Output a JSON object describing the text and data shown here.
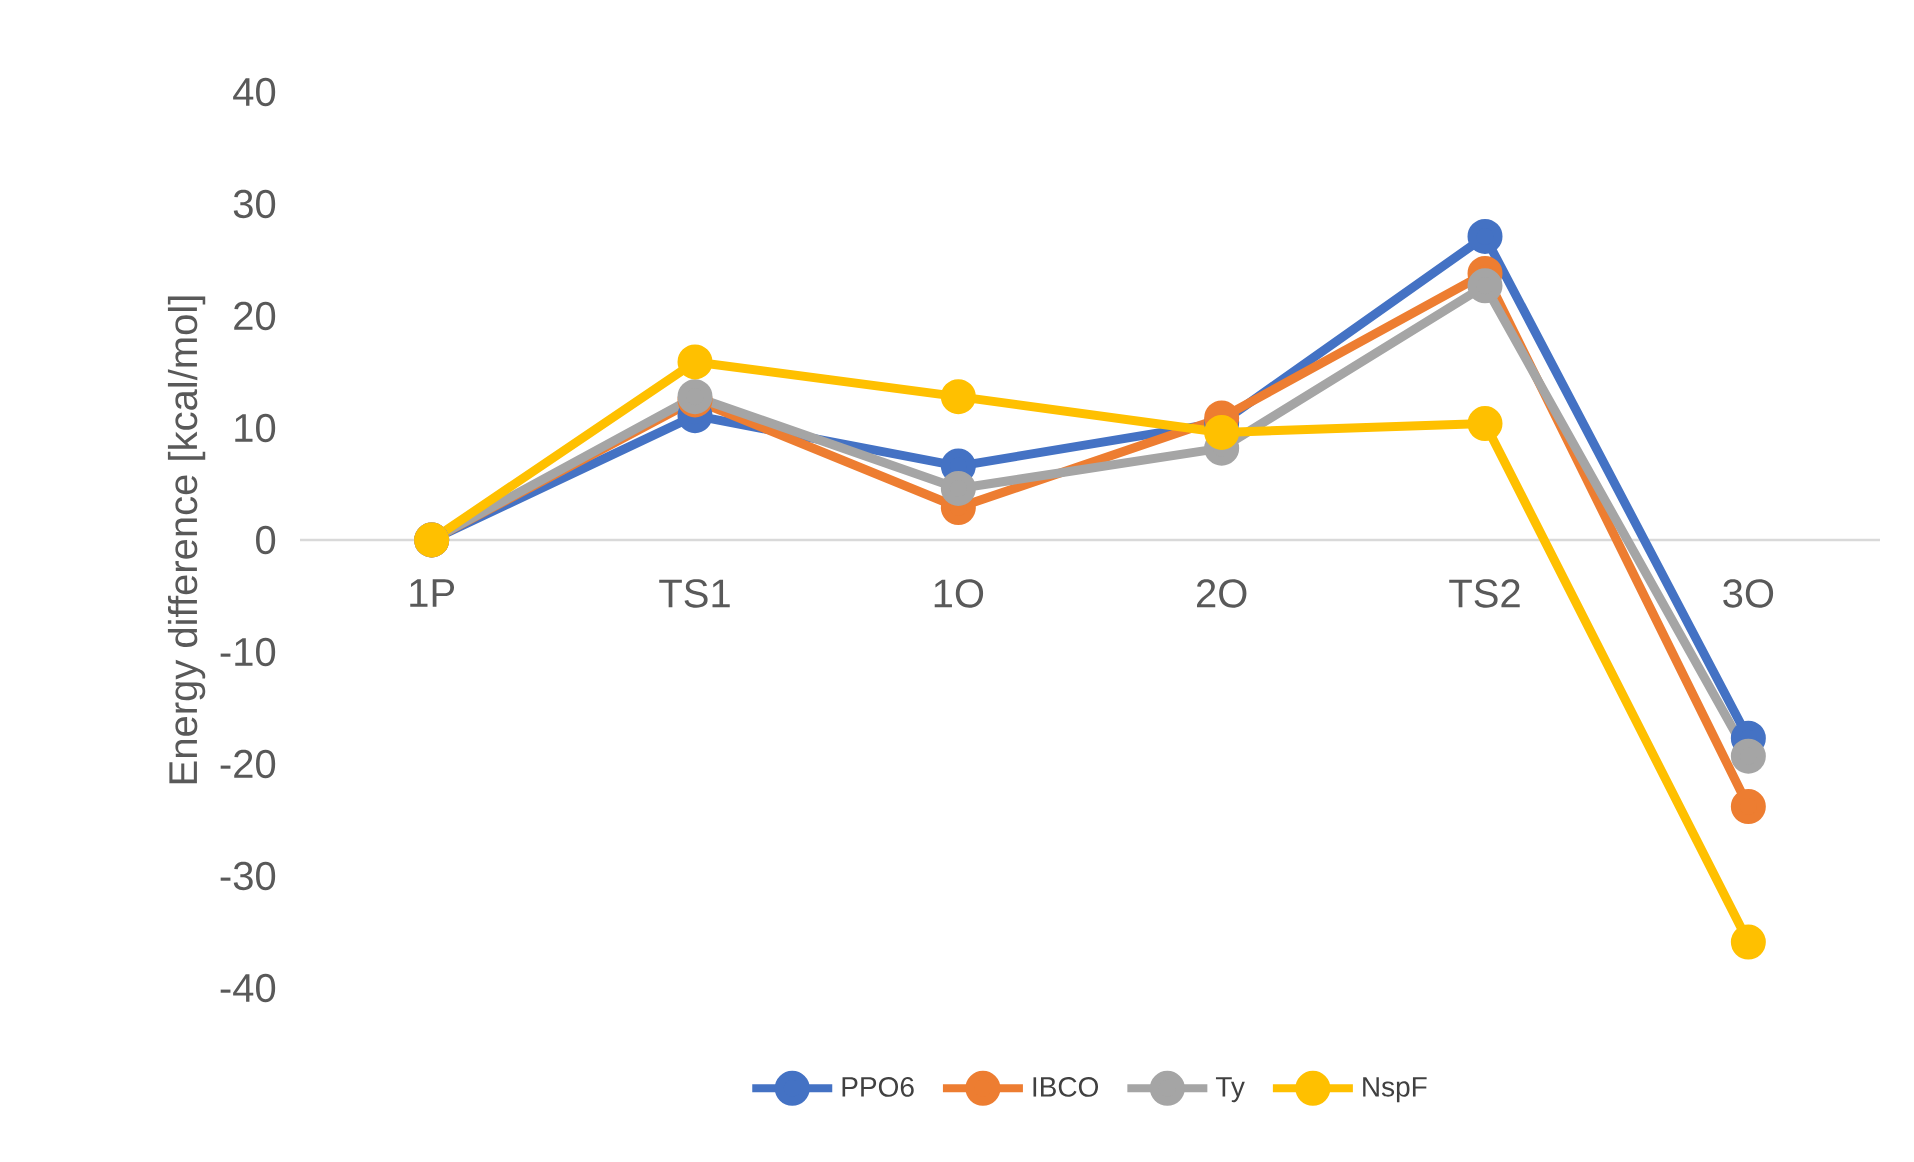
{
  "chart_data": {
    "type": "line",
    "ylabel": "Energy difference [kcal/mol]",
    "categories": [
      "1P",
      "TS1",
      "1O",
      "2O",
      "TS2",
      "3O"
    ],
    "series": [
      {
        "name": "PPO6",
        "color": "#4472c4",
        "values": [
          0,
          11.1,
          6.6,
          10.5,
          27.1,
          -17.7
        ]
      },
      {
        "name": "IBCO",
        "color": "#ed7d31",
        "values": [
          0,
          12.5,
          2.9,
          10.9,
          23.8,
          -23.8
        ]
      },
      {
        "name": "Ty",
        "color": "#a5a5a5",
        "values": [
          0,
          12.8,
          4.6,
          8.2,
          22.7,
          -19.3
        ]
      },
      {
        "name": "NspF",
        "color": "#ffc000",
        "values": [
          0,
          15.9,
          12.8,
          9.6,
          10.4,
          -35.9
        ]
      }
    ],
    "ylim": [
      -40,
      40
    ],
    "yticks": [
      -40,
      -30,
      -20,
      -10,
      0,
      10,
      20,
      30,
      40
    ],
    "grid": false,
    "legend": "bottom",
    "marker": "circle",
    "line_style": "solid"
  }
}
